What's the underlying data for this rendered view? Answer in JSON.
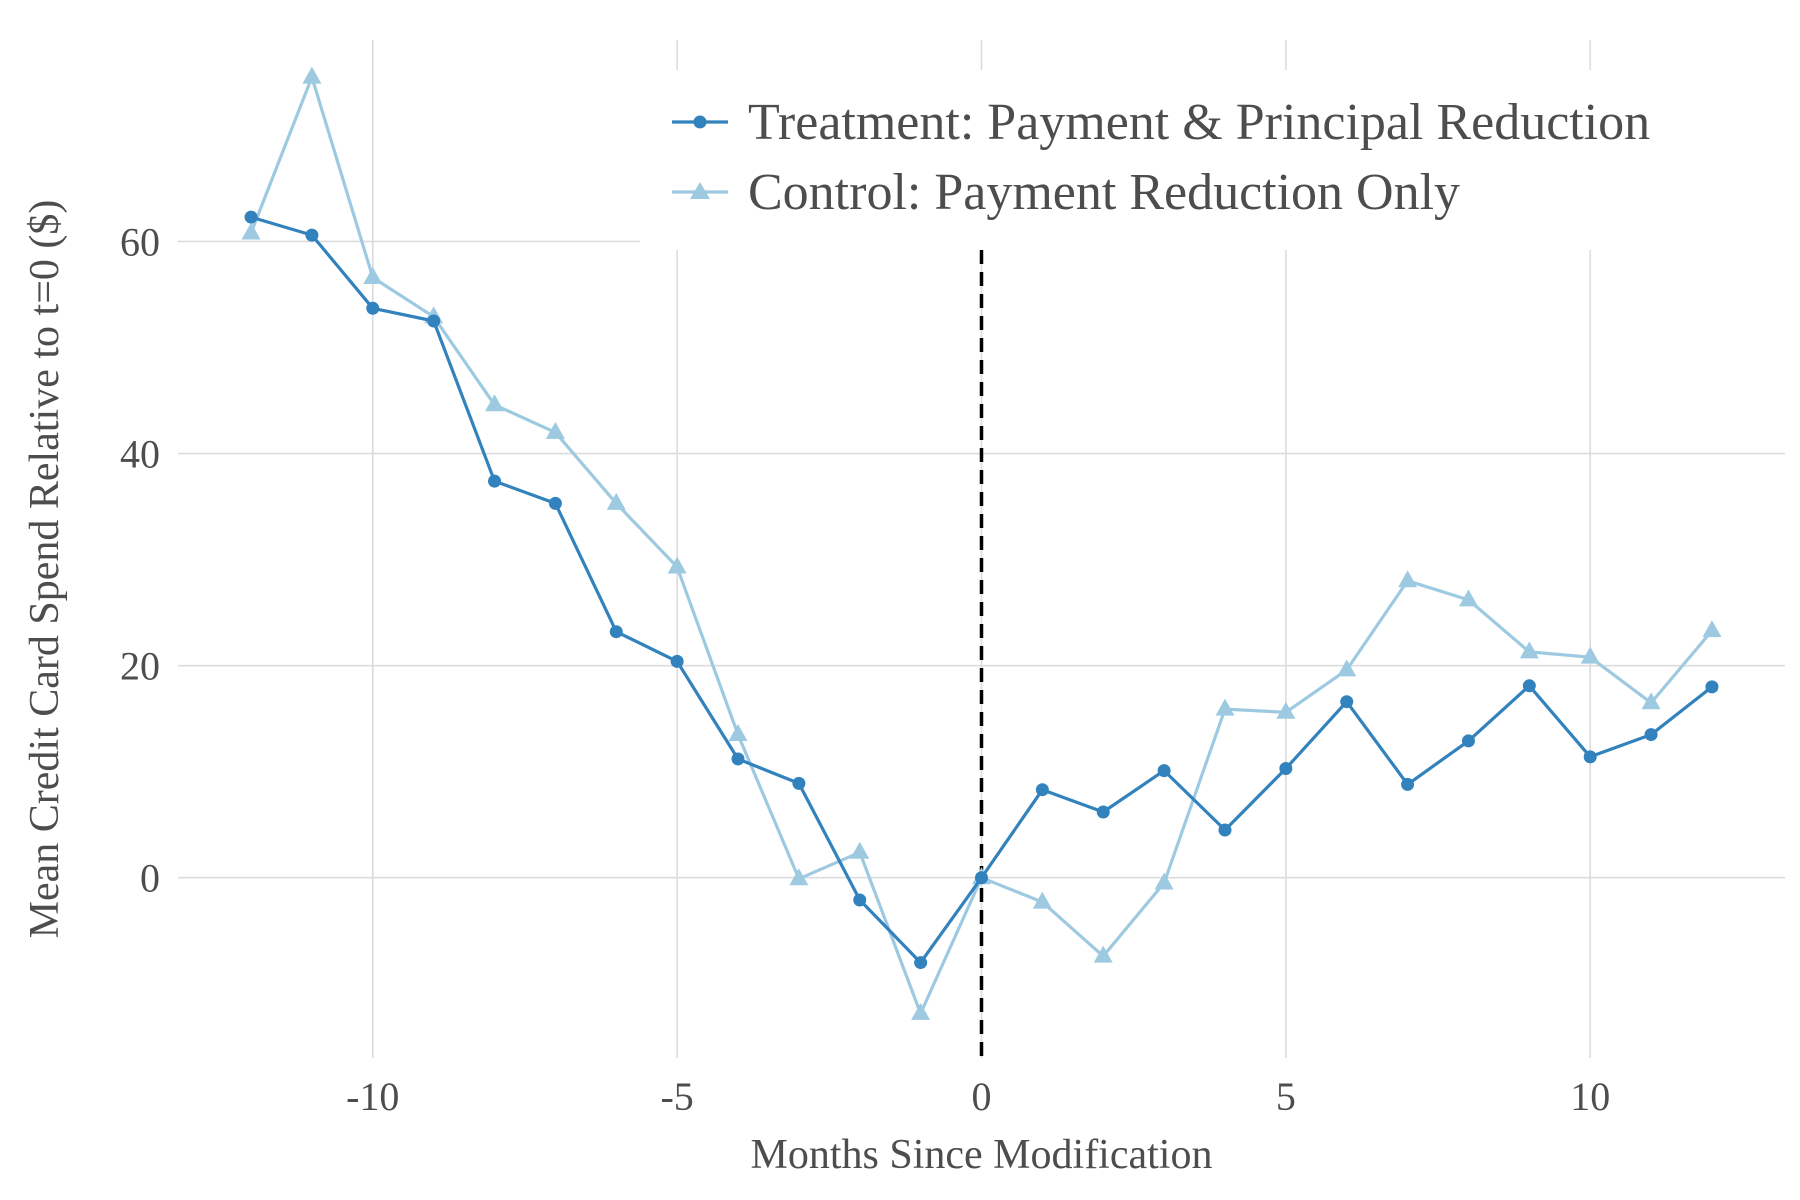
{
  "chart_data": {
    "type": "line",
    "xlabel": "Months Since Modification",
    "ylabel": "Mean Credit Card Spend Relative to t=0 ($)",
    "xlim": [
      -13.2,
      13.2
    ],
    "ylim": [
      -17,
      79
    ],
    "x_ticks": [
      -10,
      -5,
      0,
      5,
      10
    ],
    "x_tick_labels": [
      "-10",
      "-5",
      "0",
      "5",
      "10"
    ],
    "y_ticks": [
      0,
      20,
      40,
      60
    ],
    "y_tick_labels": [
      "0",
      "20",
      "40",
      "60"
    ],
    "grid": true,
    "legend_position": "top-right",
    "reference_line": {
      "x": 0,
      "style": "dashed",
      "color": "#000000"
    },
    "x": [
      -12,
      -11,
      -10,
      -9,
      -8,
      -7,
      -6,
      -5,
      -4,
      -3,
      -2,
      -1,
      0,
      1,
      2,
      3,
      4,
      5,
      6,
      7,
      8,
      9,
      10,
      11,
      12
    ],
    "series": [
      {
        "name": "Treatment: Payment & Principal Reduction",
        "color": "#3182bd",
        "marker": "circle",
        "values": [
          62.3,
          60.6,
          53.7,
          52.5,
          37.4,
          35.3,
          23.2,
          20.4,
          11.2,
          8.9,
          -2.1,
          -8.0,
          0.0,
          8.3,
          6.2,
          10.1,
          4.5,
          10.3,
          16.6,
          8.8,
          12.9,
          18.1,
          11.4,
          13.5,
          18.0
        ]
      },
      {
        "name": "Control: Payment Reduction Only",
        "color": "#9ecae1",
        "marker": "triangle",
        "values": [
          60.8,
          75.5,
          56.6,
          52.9,
          44.6,
          42.0,
          35.3,
          29.3,
          13.5,
          -0.1,
          2.4,
          -12.8,
          0.0,
          -2.3,
          -7.4,
          -0.5,
          15.9,
          15.6,
          19.6,
          28.0,
          26.2,
          21.3,
          20.8,
          16.5,
          23.3
        ]
      }
    ]
  }
}
